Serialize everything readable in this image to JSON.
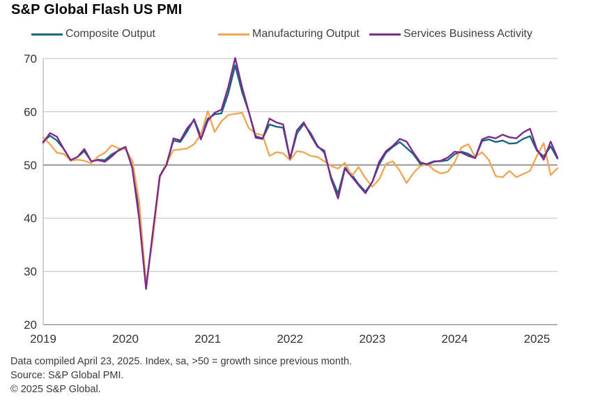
{
  "title": "S&P Global Flash US PMI",
  "legend": {
    "items": [
      {
        "label": "Composite Output",
        "color": "#17687f"
      },
      {
        "label": "Manufacturing Output",
        "color": "#f0a654"
      },
      {
        "label": "Services Business Activity",
        "color": "#7c2b8b"
      }
    ]
  },
  "footer": {
    "lines": [
      "Data compiled April 23, 2025. Index, sa, >50 = growth since previous month.",
      "Source: S&P Global PMI.",
      "© 2025 S&P Global."
    ]
  },
  "chart_data": {
    "type": "line",
    "title": "S&P Global Flash US PMI",
    "x_unit": "month",
    "x_range": [
      "Jan 2019",
      "Apr 2025"
    ],
    "points_per_series": 76,
    "ylim": [
      20,
      70
    ],
    "yticks": [
      20,
      30,
      40,
      50,
      60,
      70
    ],
    "reference_line": 50,
    "grid": "horizontal",
    "legend_position": "top",
    "axis_colors": {
      "gridline": "#c9c9c9",
      "reference": "#9e9e9e",
      "axis": "#a8a8a8",
      "spine": "#b3b3b3",
      "tick_text": "#333333"
    },
    "xticks": [
      {
        "label": "2019",
        "month_index": 0
      },
      {
        "label": "2020",
        "month_index": 12
      },
      {
        "label": "2021",
        "month_index": 24
      },
      {
        "label": "2022",
        "month_index": 36
      },
      {
        "label": "2023",
        "month_index": 48
      },
      {
        "label": "2024",
        "month_index": 60
      },
      {
        "label": "2025",
        "month_index": 72
      }
    ],
    "series": [
      {
        "name": "Composite Output",
        "color": "#17687f",
        "values": [
          54.4,
          55.5,
          54.6,
          53.0,
          50.9,
          51.5,
          52.6,
          50.7,
          51.0,
          50.9,
          52.0,
          52.7,
          53.3,
          49.6,
          40.9,
          27.0,
          37.0,
          47.9,
          50.3,
          54.6,
          54.3,
          56.3,
          58.6,
          55.3,
          58.7,
          59.5,
          59.7,
          63.5,
          68.7,
          63.7,
          59.9,
          55.4,
          55.0,
          57.6,
          57.2,
          57.0,
          51.1,
          55.9,
          57.7,
          56.0,
          53.6,
          52.3,
          47.7,
          44.6,
          49.5,
          48.2,
          46.4,
          45.0,
          46.8,
          50.1,
          52.3,
          53.4,
          54.3,
          53.2,
          52.0,
          50.2,
          50.2,
          50.7,
          50.7,
          50.9,
          52.0,
          52.5,
          52.1,
          51.3,
          54.5,
          54.8,
          54.3,
          54.6,
          54.0,
          54.1,
          54.9,
          55.4,
          52.7,
          51.6,
          53.5,
          51.2
        ]
      },
      {
        "name": "Manufacturing Output",
        "color": "#f0a654",
        "values": [
          55.2,
          53.9,
          52.3,
          52.1,
          50.8,
          51.0,
          50.8,
          50.3,
          51.6,
          52.3,
          53.7,
          53.1,
          52.9,
          50.8,
          43.0,
          27.6,
          36.2,
          47.6,
          50.4,
          52.8,
          52.9,
          53.1,
          53.9,
          55.7,
          60.1,
          56.2,
          58.2,
          59.4,
          59.6,
          59.8,
          56.9,
          55.9,
          55.6,
          51.7,
          52.4,
          52.2,
          50.9,
          52.6,
          52.4,
          51.7,
          51.5,
          50.7,
          49.8,
          49.3,
          50.4,
          47.9,
          49.6,
          47.5,
          45.9,
          47.3,
          50.2,
          50.7,
          48.9,
          46.6,
          48.5,
          49.8,
          50.2,
          49.0,
          48.4,
          48.7,
          50.5,
          53.3,
          53.9,
          51.5,
          52.4,
          50.9,
          47.9,
          47.7,
          48.9,
          47.7,
          48.3,
          48.9,
          51.7,
          54.1,
          48.1,
          49.4
        ]
      },
      {
        "name": "Services Business Activity",
        "color": "#7c2b8b",
        "values": [
          54.2,
          56.0,
          55.3,
          53.0,
          50.9,
          51.5,
          53.0,
          50.7,
          50.9,
          50.6,
          51.6,
          52.8,
          53.4,
          49.4,
          39.8,
          26.7,
          37.5,
          47.9,
          50.0,
          55.0,
          54.6,
          56.9,
          58.4,
          54.8,
          58.3,
          59.8,
          60.4,
          64.7,
          70.1,
          64.6,
          59.9,
          55.1,
          54.9,
          58.7,
          58.0,
          57.6,
          51.2,
          56.5,
          58.0,
          55.6,
          53.4,
          52.7,
          47.3,
          43.7,
          49.3,
          47.8,
          46.2,
          44.7,
          46.8,
          50.6,
          52.6,
          53.6,
          54.9,
          54.4,
          52.3,
          50.5,
          50.1,
          50.6,
          50.8,
          51.4,
          52.5,
          52.3,
          51.7,
          51.3,
          54.8,
          55.3,
          55.0,
          55.7,
          55.2,
          55.0,
          56.1,
          56.8,
          52.9,
          51.0,
          54.4,
          51.4
        ]
      }
    ]
  }
}
